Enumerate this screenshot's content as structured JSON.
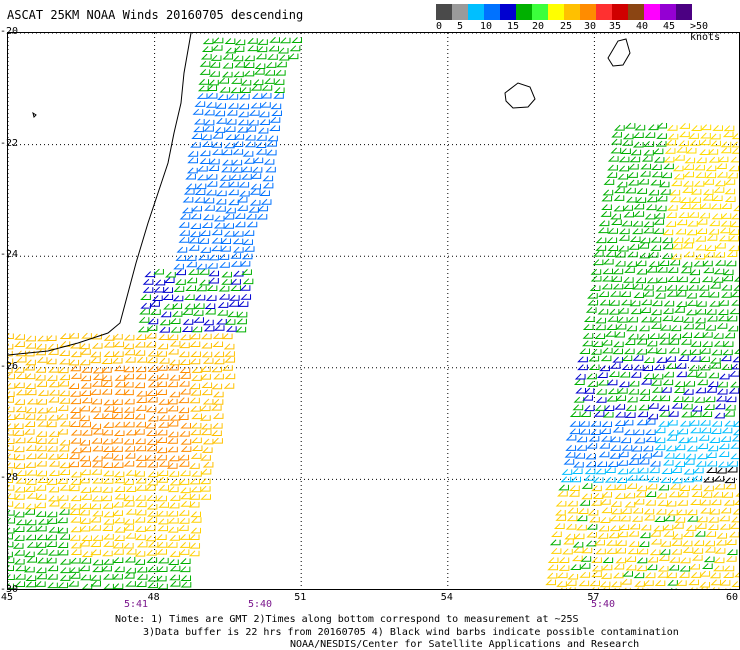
{
  "header": {
    "title": "ASCAT 25KM NOAA Winds 20160705 descending"
  },
  "colorbar": {
    "colors": [
      "#4a4a4a",
      "#9a9a9a",
      "#00bfff",
      "#0072ff",
      "#0000d0",
      "#00b000",
      "#3cff3c",
      "#ffff00",
      "#ffc000",
      "#ff8c00",
      "#ff3030",
      "#d00000",
      "#8b4513",
      "#ff00ff",
      "#9400d3",
      "#4b0082"
    ],
    "labels": [
      "0",
      "5",
      "10",
      "15",
      "20",
      "25",
      "30",
      "35",
      "40",
      "45",
      ">50 knots"
    ]
  },
  "map": {
    "lat_range": [
      -30,
      -20
    ],
    "lon_range": [
      45,
      60
    ],
    "lat_ticks": [
      "-20",
      "-22",
      "-24",
      "-26",
      "-28",
      "-30"
    ],
    "lon_ticks": [
      "45",
      "48",
      "51",
      "54",
      "57",
      "60"
    ],
    "grid": "dotted",
    "times": [
      "5:41",
      "5:40",
      "5:40"
    ],
    "land_labels": [
      "Madagascar (coast)",
      "Réunion",
      "Mauritius"
    ]
  },
  "footer": {
    "note1": "Note: 1) Times are GMT 2)Times along bottom correspond to measurement at ~25S",
    "note2": "3)Data buffer is 22 hrs from 20160705 4) Black wind barbs indicate possible contamination",
    "note3": "NOAA/NESDIS/Center for Satellite Applications and Research"
  }
}
